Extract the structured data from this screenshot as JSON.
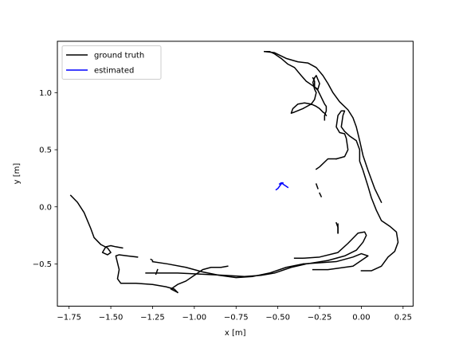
{
  "chart_data": {
    "type": "line",
    "xlabel": "x [m]",
    "ylabel": "y [m]",
    "xlim": [
      -1.82,
      0.31
    ],
    "ylim": [
      -0.87,
      1.45
    ],
    "xticks": [
      -1.75,
      -1.5,
      -1.25,
      -1.0,
      -0.75,
      -0.5,
      -0.25,
      0.0,
      0.25
    ],
    "xtick_labels": [
      "−1.75",
      "−1.50",
      "−1.25",
      "−1.00",
      "−0.75",
      "−0.50",
      "−0.25",
      "0.00",
      "0.25"
    ],
    "yticks": [
      -0.5,
      0.0,
      0.5,
      1.0
    ],
    "ytick_labels": [
      "−0.5",
      "0.0",
      "0.5",
      "1.0"
    ],
    "grid": false,
    "legend": "top-left",
    "series": [
      {
        "name": "ground truth",
        "color": "#000000",
        "segments": [
          [
            [
              -1.74,
              0.1
            ],
            [
              -1.7,
              0.04
            ],
            [
              -1.66,
              -0.05
            ],
            [
              -1.62,
              -0.19
            ],
            [
              -1.6,
              -0.27
            ],
            [
              -1.56,
              -0.33
            ],
            [
              -1.52,
              -0.36
            ],
            [
              -1.5,
              -0.4
            ],
            [
              -1.52,
              -0.42
            ],
            [
              -1.55,
              -0.4
            ],
            [
              -1.53,
              -0.35
            ],
            [
              -1.5,
              -0.34
            ],
            [
              -1.47,
              -0.35
            ],
            [
              -1.43,
              -0.36
            ]
          ],
          [
            [
              -1.34,
              -0.44
            ],
            [
              -1.4,
              -0.43
            ],
            [
              -1.45,
              -0.42
            ],
            [
              -1.47,
              -0.43
            ],
            [
              -1.45,
              -0.55
            ],
            [
              -1.46,
              -0.63
            ],
            [
              -1.44,
              -0.67
            ],
            [
              -1.35,
              -0.67
            ],
            [
              -1.25,
              -0.68
            ],
            [
              -1.17,
              -0.7
            ],
            [
              -1.12,
              -0.72
            ],
            [
              -1.1,
              -0.75
            ]
          ],
          [
            [
              -1.1,
              -0.75
            ],
            [
              -1.14,
              -0.72
            ],
            [
              -1.1,
              -0.68
            ],
            [
              -1.05,
              -0.65
            ],
            [
              -1.0,
              -0.6
            ],
            [
              -0.95,
              -0.55
            ],
            [
              -0.9,
              -0.53
            ],
            [
              -0.84,
              -0.53
            ],
            [
              -0.8,
              -0.52
            ]
          ],
          [
            [
              -1.29,
              -0.58
            ],
            [
              -1.22,
              -0.58
            ],
            [
              -1.1,
              -0.58
            ],
            [
              -0.95,
              -0.59
            ],
            [
              -0.82,
              -0.6
            ],
            [
              -0.7,
              -0.61
            ],
            [
              -0.6,
              -0.6
            ],
            [
              -0.52,
              -0.58
            ],
            [
              -0.42,
              -0.53
            ],
            [
              -0.33,
              -0.5
            ],
            [
              -0.2,
              -0.47
            ],
            [
              -0.1,
              -0.43
            ],
            [
              -0.03,
              -0.38
            ],
            [
              0.01,
              -0.31
            ],
            [
              0.03,
              -0.25
            ],
            [
              0.02,
              -0.22
            ],
            [
              -0.02,
              -0.23
            ],
            [
              -0.08,
              -0.32
            ],
            [
              -0.14,
              -0.4
            ],
            [
              -0.25,
              -0.44
            ],
            [
              -0.35,
              -0.45
            ],
            [
              -0.4,
              -0.45
            ]
          ],
          [
            [
              -1.25,
              -0.48
            ],
            [
              -1.16,
              -0.5
            ],
            [
              -1.05,
              -0.53
            ],
            [
              -0.95,
              -0.57
            ],
            [
              -0.85,
              -0.6
            ],
            [
              -0.75,
              -0.62
            ],
            [
              -0.65,
              -0.61
            ],
            [
              -0.55,
              -0.58
            ],
            [
              -0.45,
              -0.53
            ],
            [
              -0.35,
              -0.5
            ],
            [
              -0.25,
              -0.49
            ],
            [
              -0.15,
              -0.48
            ],
            [
              -0.05,
              -0.44
            ],
            [
              0.0,
              -0.41
            ],
            [
              0.04,
              -0.43
            ],
            [
              -0.05,
              -0.52
            ],
            [
              -0.2,
              -0.55
            ],
            [
              -0.29,
              -0.55
            ]
          ],
          [
            [
              0.0,
              -0.56
            ],
            [
              0.06,
              -0.56
            ],
            [
              0.12,
              -0.52
            ],
            [
              0.16,
              -0.44
            ],
            [
              0.2,
              -0.39
            ],
            [
              0.22,
              -0.31
            ],
            [
              0.21,
              -0.22
            ],
            [
              0.17,
              -0.17
            ],
            [
              0.12,
              -0.12
            ],
            [
              0.09,
              -0.03
            ],
            [
              0.06,
              0.08
            ],
            [
              0.04,
              0.18
            ],
            [
              0.01,
              0.32
            ],
            [
              -0.01,
              0.4
            ],
            [
              -0.01,
              0.5
            ],
            [
              -0.03,
              0.58
            ],
            [
              -0.07,
              0.62
            ],
            [
              -0.1,
              0.66
            ],
            [
              -0.12,
              0.7
            ],
            [
              -0.11,
              0.8
            ],
            [
              -0.1,
              0.84
            ],
            [
              -0.12,
              0.84
            ],
            [
              -0.14,
              0.8
            ],
            [
              -0.15,
              0.7
            ],
            [
              -0.13,
              0.65
            ],
            [
              -0.1,
              0.64
            ],
            [
              -0.09,
              0.6
            ],
            [
              -0.08,
              0.5
            ],
            [
              -0.1,
              0.44
            ],
            [
              -0.15,
              0.42
            ]
          ],
          [
            [
              -0.15,
              0.42
            ],
            [
              -0.2,
              0.42
            ],
            [
              -0.25,
              0.35
            ],
            [
              -0.27,
              0.33
            ]
          ],
          [
            [
              -0.58,
              1.36
            ],
            [
              -0.55,
              1.36
            ],
            [
              -0.52,
              1.34
            ],
            [
              -0.48,
              1.3
            ],
            [
              -0.44,
              1.25
            ],
            [
              -0.4,
              1.22
            ],
            [
              -0.36,
              1.15
            ],
            [
              -0.33,
              1.1
            ],
            [
              -0.28,
              1.05
            ],
            [
              -0.26,
              1.02
            ],
            [
              -0.24,
              0.96
            ],
            [
              -0.22,
              0.9
            ],
            [
              -0.21,
              0.88
            ],
            [
              -0.21,
              0.84
            ],
            [
              -0.22,
              0.8
            ],
            [
              -0.22,
              0.76
            ]
          ],
          [
            [
              -0.58,
              1.36
            ],
            [
              -0.52,
              1.35
            ],
            [
              -0.45,
              1.3
            ],
            [
              -0.38,
              1.27
            ],
            [
              -0.32,
              1.26
            ],
            [
              -0.27,
              1.22
            ],
            [
              -0.23,
              1.15
            ],
            [
              -0.2,
              1.08
            ],
            [
              -0.17,
              1.0
            ],
            [
              -0.13,
              0.92
            ],
            [
              -0.08,
              0.85
            ],
            [
              -0.05,
              0.78
            ],
            [
              -0.03,
              0.7
            ],
            [
              -0.01,
              0.58
            ],
            [
              0.01,
              0.45
            ],
            [
              0.04,
              0.32
            ],
            [
              0.08,
              0.16
            ],
            [
              0.12,
              0.04
            ]
          ],
          [
            [
              -0.29,
              1.13
            ],
            [
              -0.28,
              1.1
            ],
            [
              -0.28,
              1.05
            ],
            [
              -0.26,
              1.03
            ],
            [
              -0.25,
              1.08
            ],
            [
              -0.27,
              1.15
            ],
            [
              -0.28,
              1.13
            ],
            [
              -0.29,
              1.09
            ],
            [
              -0.28,
              1.03
            ],
            [
              -0.27,
              1.0
            ],
            [
              -0.28,
              0.94
            ],
            [
              -0.3,
              0.9
            ],
            [
              -0.35,
              0.86
            ],
            [
              -0.4,
              0.83
            ],
            [
              -0.42,
              0.82
            ],
            [
              -0.41,
              0.86
            ],
            [
              -0.38,
              0.9
            ],
            [
              -0.34,
              0.91
            ],
            [
              -0.3,
              0.9
            ],
            [
              -0.27,
              0.88
            ],
            [
              -0.25,
              0.86
            ],
            [
              -0.23,
              0.83
            ],
            [
              -0.22,
              0.82
            ],
            [
              -0.21,
              0.8
            ]
          ],
          [
            [
              -0.27,
              0.2
            ],
            [
              -0.26,
              0.16
            ]
          ],
          [
            [
              -0.25,
              0.12
            ],
            [
              -0.24,
              0.09
            ]
          ],
          [
            [
              -0.15,
              -0.14
            ],
            [
              -0.14,
              -0.18
            ],
            [
              -0.14,
              -0.23
            ]
          ],
          [
            [
              -0.14,
              -0.15
            ],
            [
              -0.14,
              -0.23
            ]
          ],
          [
            [
              -1.22,
              -0.55
            ],
            [
              -1.23,
              -0.59
            ]
          ],
          [
            [
              -1.26,
              -0.46
            ],
            [
              -1.25,
              -0.47
            ]
          ]
        ]
      },
      {
        "name": "estimated",
        "color": "#0000ff",
        "segments": [
          [
            [
              -0.51,
              0.15
            ],
            [
              -0.5,
              0.16
            ],
            [
              -0.49,
              0.18
            ],
            [
              -0.48,
              0.2
            ],
            [
              -0.47,
              0.21
            ],
            [
              -0.47,
              0.2
            ],
            [
              -0.46,
              0.19
            ],
            [
              -0.45,
              0.18
            ],
            [
              -0.44,
              0.17
            ]
          ],
          [
            [
              -0.49,
              0.2
            ],
            [
              -0.48,
              0.21
            ],
            [
              -0.47,
              0.21
            ]
          ]
        ]
      }
    ]
  }
}
